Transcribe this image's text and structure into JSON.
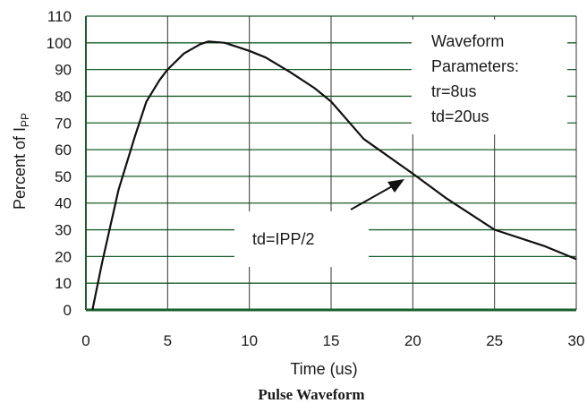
{
  "chart_data": {
    "type": "line",
    "title": "Pulse Waveform",
    "xlabel": "Time (us)",
    "ylabel": {
      "main": "Percent of I",
      "sub": "PP"
    },
    "xlim": [
      0,
      30
    ],
    "ylim": [
      0,
      110
    ],
    "x_ticks": [
      0,
      5,
      10,
      15,
      20,
      25,
      30
    ],
    "y_ticks": [
      0,
      10,
      20,
      30,
      40,
      50,
      60,
      70,
      80,
      90,
      100,
      110
    ],
    "grid": true,
    "series": [
      {
        "x": [
          0.4,
          1.0,
          2.0,
          3.0,
          3.7,
          4.5,
          5.0,
          6.0,
          7.0,
          7.5,
          8.5,
          10.0,
          11.0,
          12.5,
          14.0,
          15.0,
          16.0,
          17.0,
          20.0,
          22.0,
          25.0,
          28.0,
          30.0
        ],
        "y": [
          0,
          18,
          45,
          65,
          78,
          86,
          90,
          96,
          99.5,
          100.5,
          100,
          97,
          94.5,
          89,
          83,
          78,
          71,
          64,
          51,
          42,
          30,
          24,
          19
        ],
        "color": "#111111"
      }
    ],
    "annotations": {
      "params_box": [
        "Waveform",
        "Parameters:",
        "tr=8us",
        "td=20us"
      ],
      "td_label": "td=IPP/2"
    },
    "grid_color": "#1a5e2a",
    "axis_color": "#1a5e2a"
  }
}
